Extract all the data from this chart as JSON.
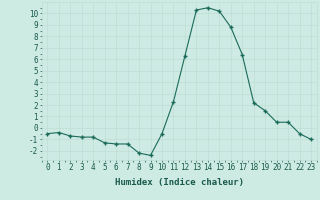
{
  "x": [
    0,
    1,
    2,
    3,
    4,
    5,
    6,
    7,
    8,
    9,
    10,
    11,
    12,
    13,
    14,
    15,
    16,
    17,
    18,
    19,
    20,
    21,
    22,
    23
  ],
  "y": [
    -0.5,
    -0.4,
    -0.7,
    -0.8,
    -0.8,
    -1.3,
    -1.4,
    -1.4,
    -2.2,
    -2.4,
    -0.5,
    2.3,
    6.3,
    10.3,
    10.5,
    10.2,
    8.8,
    6.4,
    2.2,
    1.5,
    0.5,
    0.5,
    -0.5,
    -1.0
  ],
  "xlabel": "Humidex (Indice chaleur)",
  "xlim_min": -0.5,
  "xlim_max": 23.5,
  "ylim_min": -2.8,
  "ylim_max": 11.0,
  "yticks": [
    -2,
    -1,
    0,
    1,
    2,
    3,
    4,
    5,
    6,
    7,
    8,
    9,
    10
  ],
  "xticks": [
    0,
    1,
    2,
    3,
    4,
    5,
    6,
    7,
    8,
    9,
    10,
    11,
    12,
    13,
    14,
    15,
    16,
    17,
    18,
    19,
    20,
    21,
    22,
    23
  ],
  "line_color": "#1a6b5a",
  "marker_color": "#1a6b5a",
  "bg_color": "#cdeae3",
  "grid_major_color": "#c0ddd6",
  "grid_minor_color": "#d8eeea",
  "font_color": "#1a5a4a",
  "xlabel_fontsize": 6.5,
  "tick_fontsize": 5.5
}
